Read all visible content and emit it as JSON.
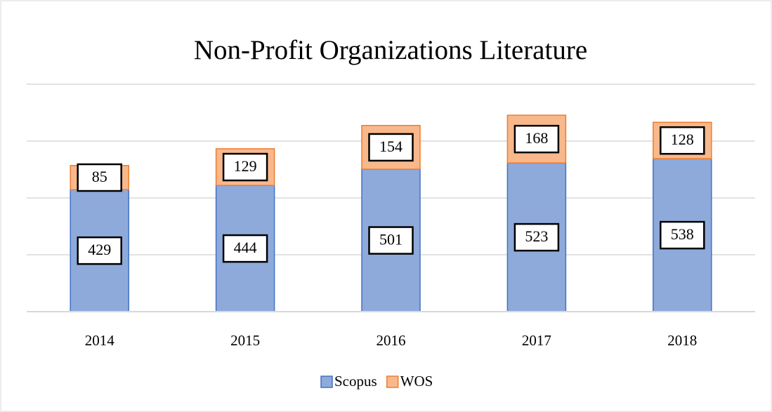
{
  "chart_data": {
    "type": "bar",
    "stacked": true,
    "title": "Non-Profit Organizations Literature",
    "categories": [
      "2014",
      "2015",
      "2016",
      "2017",
      "2018"
    ],
    "series": [
      {
        "name": "Scopus",
        "color": "#8eaadb",
        "edgecolor": "#4472c4",
        "values": [
          429,
          444,
          501,
          523,
          538
        ]
      },
      {
        "name": "WOS",
        "color": "#f8b88b",
        "edgecolor": "#ed7d31",
        "values": [
          85,
          129,
          154,
          168,
          128
        ]
      }
    ],
    "ylim": [
      0,
      800
    ],
    "yticks": [
      0,
      200,
      400,
      600,
      800
    ],
    "grid": true,
    "legend": "bottom"
  }
}
